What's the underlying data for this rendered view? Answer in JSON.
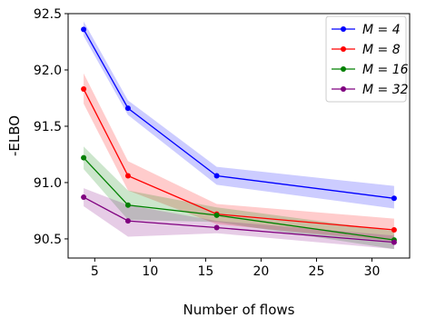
{
  "chart_data": {
    "type": "line",
    "title": "",
    "xlabel": "Number of flows",
    "ylabel": "-ELBO",
    "xlim": [
      2.6,
      33.4
    ],
    "ylim": [
      90.33,
      92.5
    ],
    "x": [
      4,
      8,
      16,
      32
    ],
    "xticks": [
      5,
      10,
      15,
      20,
      25,
      30
    ],
    "xtick_labels": [
      "5",
      "10",
      "15",
      "20",
      "25",
      "30"
    ],
    "yticks": [
      90.5,
      91.0,
      91.5,
      92.0,
      92.5
    ],
    "ytick_labels": [
      "90.5",
      "91.0",
      "91.5",
      "92.0",
      "92.5"
    ],
    "grid": false,
    "legend_position": "top-right",
    "series": [
      {
        "name": "M = 4",
        "color": "#0000ff",
        "values": [
          92.36,
          91.66,
          91.06,
          90.86
        ],
        "lower": [
          92.3,
          91.6,
          90.98,
          90.77
        ],
        "upper": [
          92.43,
          91.73,
          91.14,
          90.97
        ]
      },
      {
        "name": "M = 8",
        "color": "#ff0000",
        "values": [
          91.83,
          91.06,
          90.72,
          90.58
        ],
        "lower": [
          91.7,
          90.93,
          90.63,
          90.48
        ],
        "upper": [
          91.97,
          91.19,
          90.81,
          90.68
        ]
      },
      {
        "name": "M = 16",
        "color": "#008000",
        "values": [
          91.22,
          90.8,
          90.71,
          90.49
        ],
        "lower": [
          91.12,
          90.67,
          90.65,
          90.41
        ],
        "upper": [
          91.32,
          90.93,
          90.78,
          90.57
        ]
      },
      {
        "name": "M = 32",
        "color": "#800080",
        "values": [
          90.87,
          90.66,
          90.6,
          90.47
        ],
        "lower": [
          90.79,
          90.52,
          90.55,
          90.41
        ],
        "upper": [
          90.95,
          90.8,
          90.66,
          90.53
        ]
      }
    ]
  }
}
